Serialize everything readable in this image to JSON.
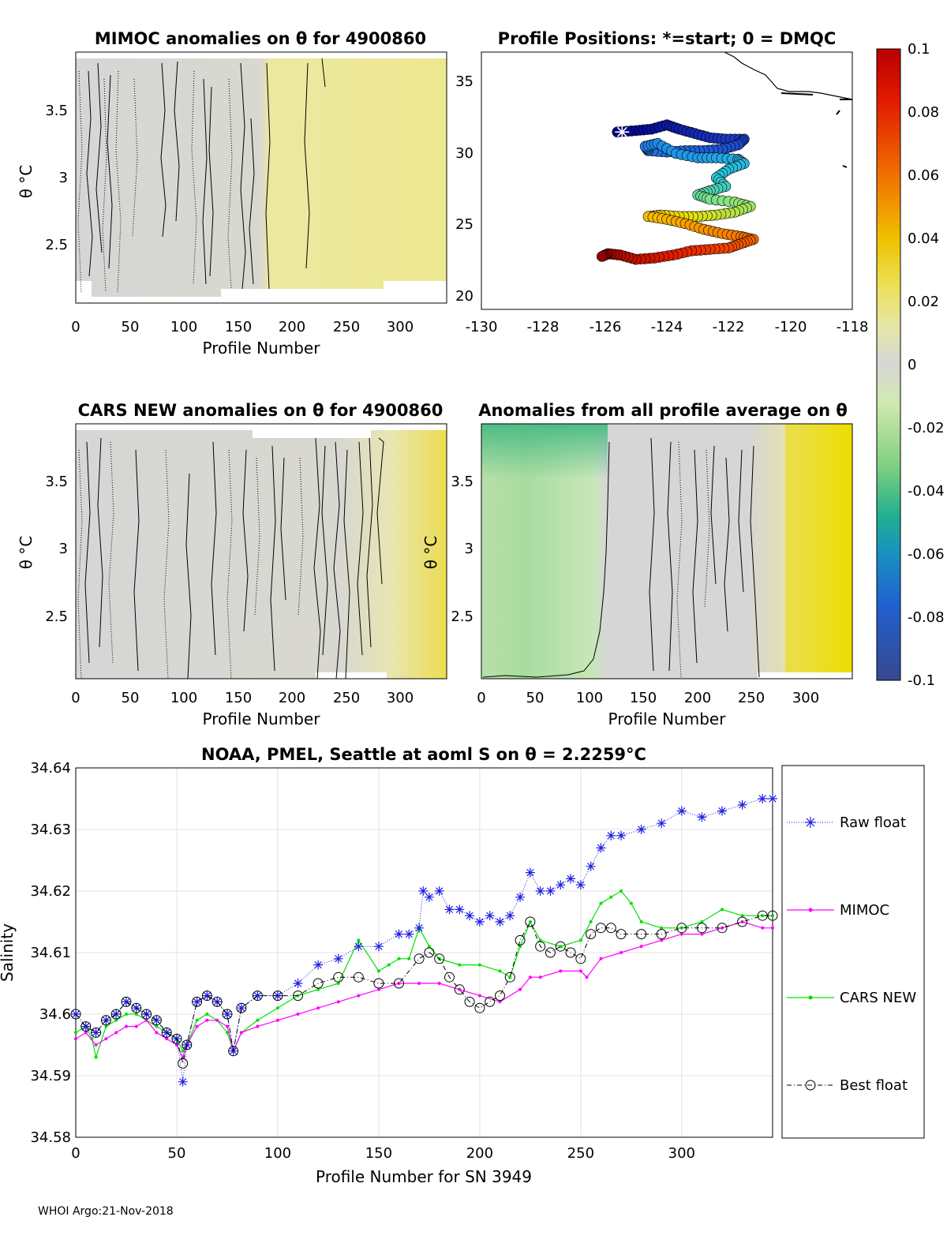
{
  "footer": "WHOI Argo:21-Nov-2018",
  "panels": {
    "mimoc": {
      "title": "MIMOC anomalies on θ  for 4900860",
      "xlabel": "Profile Number",
      "ylabel": "θ °C",
      "xticks": [
        "0",
        "50",
        "100",
        "150",
        "200",
        "250",
        "300"
      ],
      "yticks": [
        "2.5",
        "3",
        "3.5"
      ]
    },
    "cars": {
      "title": "CARS NEW anomalies on θ for 4900860",
      "xlabel": "Profile Number",
      "ylabel": "θ °C",
      "xticks": [
        "0",
        "50",
        "100",
        "150",
        "200",
        "250",
        "300"
      ],
      "yticks": [
        "2.5",
        "3",
        "3.5"
      ]
    },
    "avg": {
      "title": "Anomalies from all profile average on θ",
      "xlabel": "Profile Number",
      "ylabel": "θ °C",
      "xticks": [
        "0",
        "50",
        "100",
        "150",
        "200",
        "250",
        "300"
      ],
      "yticks": [
        "2.5",
        "3",
        "3.5"
      ]
    },
    "map": {
      "title": "Profile Positions: *=start; 0 = DMQC",
      "xticks": [
        "-130",
        "-128",
        "-126",
        "-124",
        "-122",
        "-120",
        "-118"
      ],
      "yticks": [
        "20",
        "25",
        "30",
        "35"
      ]
    }
  },
  "colorbar": {
    "ticks": [
      "0.1",
      "0.08",
      "0.06",
      "0.04",
      "0.02",
      "0",
      "-0.02",
      "-0.04",
      "-0.06",
      "-0.08",
      "-0.1"
    ]
  },
  "chart_data": [
    {
      "type": "line",
      "title": "NOAA, PMEL, Seattle at aoml S on θ = 2.2259°C",
      "xlabel": "Profile Number for SN 3949",
      "ylabel": "Salinity",
      "xlim": [
        0,
        345
      ],
      "ylim": [
        34.58,
        34.64
      ],
      "xticks": [
        "0",
        "50",
        "100",
        "150",
        "200",
        "250",
        "300"
      ],
      "yticks": [
        "34.58",
        "34.59",
        "34.6",
        "34.61",
        "34.62",
        "34.63",
        "34.64"
      ],
      "grid": true,
      "legend_position": "right",
      "series": [
        {
          "name": "Raw float",
          "color": "#2020e0",
          "marker": "asterisk",
          "x": [
            0,
            5,
            10,
            15,
            20,
            25,
            30,
            35,
            40,
            45,
            50,
            53,
            55,
            60,
            65,
            70,
            75,
            78,
            82,
            90,
            100,
            110,
            120,
            130,
            140,
            150,
            160,
            165,
            170,
            172,
            175,
            180,
            185,
            190,
            195,
            200,
            205,
            210,
            215,
            220,
            225,
            230,
            235,
            240,
            245,
            250,
            255,
            260,
            265,
            270,
            280,
            290,
            300,
            310,
            320,
            330,
            340,
            345
          ],
          "y": [
            34.6,
            34.598,
            34.597,
            34.599,
            34.6,
            34.602,
            34.601,
            34.6,
            34.599,
            34.597,
            34.596,
            34.589,
            34.595,
            34.602,
            34.603,
            34.602,
            34.6,
            34.594,
            34.601,
            34.603,
            34.603,
            34.605,
            34.608,
            34.609,
            34.611,
            34.611,
            34.613,
            34.613,
            34.614,
            34.62,
            34.619,
            34.62,
            34.617,
            34.617,
            34.616,
            34.615,
            34.616,
            34.615,
            34.616,
            34.619,
            34.623,
            34.62,
            34.62,
            34.621,
            34.622,
            34.621,
            34.624,
            34.627,
            34.629,
            34.629,
            34.63,
            34.631,
            34.633,
            34.632,
            34.633,
            34.634,
            34.635,
            34.635
          ]
        },
        {
          "name": "MIMOC",
          "color": "#ff00ff",
          "marker": "dot",
          "x": [
            0,
            5,
            10,
            15,
            20,
            25,
            30,
            35,
            40,
            45,
            50,
            53,
            55,
            60,
            65,
            70,
            75,
            78,
            82,
            90,
            100,
            110,
            120,
            130,
            140,
            150,
            160,
            170,
            180,
            190,
            200,
            210,
            220,
            225,
            230,
            240,
            250,
            253,
            260,
            270,
            280,
            290,
            300,
            310,
            320,
            330,
            340,
            345
          ],
          "y": [
            34.596,
            34.597,
            34.595,
            34.596,
            34.597,
            34.598,
            34.598,
            34.599,
            34.597,
            34.596,
            34.595,
            34.593,
            34.595,
            34.598,
            34.599,
            34.599,
            34.598,
            34.594,
            34.597,
            34.598,
            34.599,
            34.6,
            34.601,
            34.602,
            34.603,
            34.604,
            34.605,
            34.605,
            34.605,
            34.604,
            34.603,
            34.602,
            34.604,
            34.606,
            34.606,
            34.607,
            34.607,
            34.606,
            34.609,
            34.61,
            34.611,
            34.612,
            34.613,
            34.613,
            34.614,
            34.615,
            34.614,
            34.614
          ]
        },
        {
          "name": "CARS NEW",
          "color": "#00e000",
          "marker": "dot",
          "x": [
            0,
            5,
            8,
            10,
            15,
            20,
            25,
            30,
            35,
            40,
            45,
            50,
            53,
            55,
            60,
            65,
            70,
            75,
            78,
            82,
            90,
            100,
            110,
            120,
            130,
            140,
            150,
            155,
            160,
            165,
            170,
            175,
            180,
            190,
            200,
            210,
            215,
            220,
            225,
            230,
            240,
            250,
            255,
            260,
            265,
            270,
            275,
            280,
            290,
            300,
            310,
            320,
            330,
            340,
            345
          ],
          "y": [
            34.597,
            34.598,
            34.596,
            34.593,
            34.598,
            34.599,
            34.6,
            34.6,
            34.599,
            34.598,
            34.597,
            34.596,
            34.594,
            34.595,
            34.599,
            34.6,
            34.599,
            34.597,
            34.594,
            34.597,
            34.599,
            34.601,
            34.603,
            34.604,
            34.605,
            34.612,
            34.607,
            34.608,
            34.609,
            34.609,
            34.614,
            34.611,
            34.609,
            34.608,
            34.608,
            34.607,
            34.606,
            34.611,
            34.615,
            34.612,
            34.611,
            34.612,
            34.615,
            34.618,
            34.619,
            34.62,
            34.618,
            34.615,
            34.614,
            34.614,
            34.615,
            34.617,
            34.616,
            34.616,
            34.616
          ]
        },
        {
          "name": "Best float",
          "color": "#000000",
          "marker": "circle",
          "x": [
            0,
            5,
            10,
            15,
            20,
            25,
            30,
            35,
            40,
            45,
            50,
            53,
            55,
            60,
            65,
            70,
            75,
            78,
            82,
            90,
            100,
            110,
            120,
            130,
            140,
            150,
            160,
            170,
            175,
            180,
            185,
            190,
            195,
            200,
            205,
            210,
            215,
            220,
            225,
            230,
            235,
            240,
            245,
            250,
            255,
            260,
            265,
            270,
            280,
            290,
            300,
            310,
            320,
            330,
            340,
            345
          ],
          "y": [
            34.6,
            34.598,
            34.597,
            34.599,
            34.6,
            34.602,
            34.601,
            34.6,
            34.599,
            34.597,
            34.596,
            34.592,
            34.595,
            34.602,
            34.603,
            34.602,
            34.6,
            34.594,
            34.601,
            34.603,
            34.603,
            34.603,
            34.605,
            34.606,
            34.606,
            34.605,
            34.605,
            34.609,
            34.61,
            34.609,
            34.606,
            34.604,
            34.602,
            34.601,
            34.602,
            34.603,
            34.606,
            34.612,
            34.615,
            34.611,
            34.61,
            34.611,
            34.61,
            34.609,
            34.613,
            34.614,
            34.614,
            34.613,
            34.613,
            34.613,
            34.614,
            34.614,
            34.614,
            34.615,
            34.616,
            34.616
          ]
        }
      ]
    }
  ]
}
